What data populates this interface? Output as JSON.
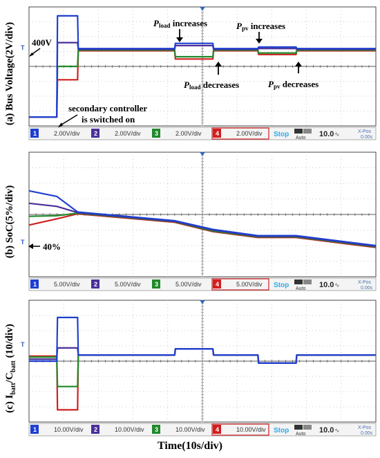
{
  "figure": {
    "xlabel": "Time(10s/div)",
    "colors": {
      "ch1": "#1f3fd0",
      "ch2": "#4a2f9a",
      "ch3": "#1f8a2a",
      "ch4": "#d01f1f",
      "grid": "#b8b8b8",
      "status": "#2ea8e6",
      "trigger": "#2e5fc0"
    }
  },
  "panels": [
    {
      "ylabel_html": "(a) Bus Voltage(2V/div)",
      "scales": [
        "2.00V/div",
        "2.00V/div",
        "2.00V/div",
        "2.00V/div"
      ],
      "channels": [
        "1",
        "2",
        "3",
        "4"
      ],
      "status": "Stop",
      "mode": "Auto",
      "timebase": "10.0",
      "xpos_label": "X-Pos",
      "xpos_value": "0.00s",
      "annotations": {
        "v400": "400V",
        "secondary": "secondary controller",
        "switched": "is switched on",
        "pload_inc_sym": "P",
        "pload_inc_sub": "load",
        "pload_inc_txt": " increases",
        "pload_dec_sym": "P",
        "pload_dec_sub": "load",
        "pload_dec_txt": " decreases",
        "ppv_inc_sym": "P",
        "ppv_inc_sub": "pv",
        "ppv_inc_txt": " increases",
        "ppv_dec_sym": "P",
        "ppv_dec_sub": "pv",
        "ppv_dec_txt": " decreases"
      }
    },
    {
      "ylabel_html": "(b) SoC(5%/div)",
      "scales": [
        "5.00V/div",
        "5.00V/div",
        "5.00V/div",
        "5.00V/div"
      ],
      "channels": [
        "1",
        "2",
        "3",
        "4"
      ],
      "status": "Stop",
      "mode": "Auto",
      "timebase": "10.0",
      "xpos_label": "X-Pos",
      "xpos_value": "0.00s",
      "annotations": {
        "soc40": "40%"
      }
    },
    {
      "ylabel_main": "(c) I",
      "ylabel_sub1": "batt",
      "ylabel_mid": "/C",
      "ylabel_sub2": "batt",
      "ylabel_end": " (10/div)",
      "scales": [
        "10.00V/div",
        "10.00V/div",
        "10.00V/div",
        "10.00V/div"
      ],
      "channels": [
        "1",
        "2",
        "3",
        "4"
      ],
      "status": "Stop",
      "mode": "Auto",
      "timebase": "10.0",
      "xpos_label": "X-Pos",
      "xpos_value": "0.00s"
    }
  ],
  "chart_data": [
    {
      "type": "line",
      "title": "(a) Bus Voltage(2V/div)",
      "xlabel": "Time(10s/div)",
      "ylabel": "Bus Voltage (2V/div)",
      "xlim": [
        0,
        100
      ],
      "ylim": [
        -8,
        8
      ],
      "x": [
        0,
        8,
        8.2,
        14,
        14.2,
        42,
        42.2,
        53,
        53.2,
        66,
        66.2,
        77,
        77.2,
        100
      ],
      "series": [
        {
          "name": "1",
          "values": [
            -6.8,
            -6.8,
            6.8,
            6.8,
            2.4,
            2.4,
            3.1,
            3.1,
            2.4,
            2.4,
            2.6,
            2.6,
            2.4,
            2.4
          ]
        },
        {
          "name": "2",
          "values": [
            -6.8,
            -6.8,
            3.2,
            3.2,
            2.3,
            2.3,
            2.8,
            2.8,
            2.3,
            2.3,
            2.4,
            2.4,
            2.3,
            2.3
          ]
        },
        {
          "name": "3",
          "values": [
            -6.8,
            -6.8,
            0.0,
            0.0,
            2.2,
            2.2,
            1.3,
            1.3,
            2.2,
            2.2,
            1.8,
            1.8,
            2.2,
            2.2
          ]
        },
        {
          "name": "4",
          "values": [
            -6.8,
            -6.8,
            -1.8,
            -1.8,
            2.1,
            2.1,
            1.0,
            1.0,
            2.1,
            2.1,
            1.6,
            1.6,
            2.1,
            2.1
          ]
        }
      ]
    },
    {
      "type": "line",
      "title": "(b) SoC(5%/div)",
      "xlabel": "Time(10s/div)",
      "ylabel": "SoC (5%/div)",
      "xlim": [
        0,
        100
      ],
      "ylim": [
        -20,
        20
      ],
      "x": [
        0,
        8,
        14,
        42,
        53,
        66,
        77,
        100
      ],
      "series": [
        {
          "name": "1",
          "values": [
            7.6,
            5.8,
            0.8,
            -2.0,
            -4.8,
            -6.8,
            -6.8,
            -10.0
          ]
        },
        {
          "name": "2",
          "values": [
            3.6,
            2.6,
            0.6,
            -2.2,
            -5.0,
            -7.0,
            -7.0,
            -10.2
          ]
        },
        {
          "name": "3",
          "values": [
            -0.6,
            -0.4,
            0.4,
            -2.3,
            -5.3,
            -7.2,
            -7.2,
            -10.4
          ]
        },
        {
          "name": "4",
          "values": [
            -3.4,
            -1.4,
            0.2,
            -2.5,
            -5.5,
            -7.4,
            -7.4,
            -10.6
          ]
        }
      ]
    },
    {
      "type": "line",
      "title": "(c) Ibatt/Cbatt (10/div)",
      "xlabel": "Time(10s/div)",
      "ylabel": "Ibatt/Cbatt (10/div)",
      "xlim": [
        0,
        100
      ],
      "ylim": [
        -60,
        60
      ],
      "x": [
        0,
        8,
        8.2,
        14,
        14.2,
        42,
        42.2,
        53,
        53.2,
        66,
        66.2,
        77,
        77.2,
        100
      ],
      "series": [
        {
          "name": "1",
          "values": [
            0,
            0,
            43,
            43,
            6,
            6,
            12,
            12,
            6,
            6,
            -2,
            -2,
            6,
            6
          ]
        },
        {
          "name": "2",
          "values": [
            2,
            2,
            13,
            13,
            6,
            6,
            12,
            12,
            6,
            6,
            -2,
            -2,
            6,
            6
          ]
        },
        {
          "name": "3",
          "values": [
            4,
            4,
            -25,
            -25,
            6,
            6,
            12,
            12,
            6,
            6,
            -2,
            -2,
            6,
            6
          ]
        },
        {
          "name": "4",
          "values": [
            5,
            5,
            -48,
            -48,
            6,
            6,
            12,
            12,
            6,
            6,
            -2,
            -2,
            6,
            6
          ]
        }
      ]
    }
  ]
}
